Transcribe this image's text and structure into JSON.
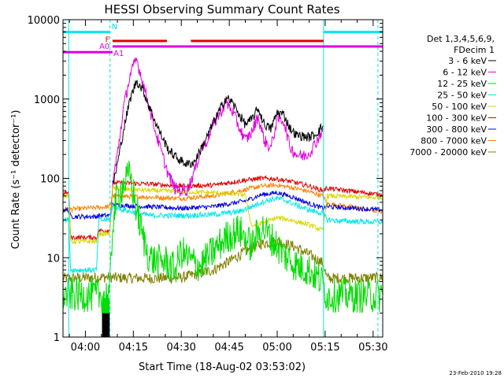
{
  "chart_data": {
    "type": "line",
    "title": "HESSI Observing Summary Count Rates",
    "xlabel": "Start Time (18-Aug-02 03:53:02)",
    "ylabel": "Count Rate (s⁻¹ detector⁻¹)",
    "y_scale": "log",
    "xlim_minutes_after_0400": [
      -7,
      93
    ],
    "ylim": [
      1,
      10000
    ],
    "x_ticks": [
      {
        "t": 0,
        "label": "04:00"
      },
      {
        "t": 15,
        "label": "04:15"
      },
      {
        "t": 30,
        "label": "04:30"
      },
      {
        "t": 45,
        "label": "04:45"
      },
      {
        "t": 60,
        "label": "05:00"
      },
      {
        "t": 75,
        "label": "05:15"
      },
      {
        "t": 90,
        "label": "05:30"
      }
    ],
    "y_ticks": [
      {
        "v": 1,
        "label": "1"
      },
      {
        "v": 10,
        "label": "10"
      },
      {
        "v": 100,
        "label": "100"
      },
      {
        "v": 1000,
        "label": "1000"
      },
      {
        "v": 10000,
        "label": "10000"
      }
    ],
    "legend": {
      "position": "right",
      "header": [
        "Det 1,3,4,5,6,9,",
        "FDecim 1"
      ],
      "entries": [
        {
          "label": "3 - 6 keV",
          "color": "#000000"
        },
        {
          "label": "6 - 12 keV",
          "color": "#e000e0"
        },
        {
          "label": "12 - 25 keV",
          "color": "#00dd00"
        },
        {
          "label": "25 - 50 keV",
          "color": "#00e8e8"
        },
        {
          "label": "50 - 100 keV",
          "color": "#d8d800"
        },
        {
          "label": "100 - 300 keV",
          "color": "#e00000"
        },
        {
          "label": "300 - 800 keV",
          "color": "#0000e0"
        },
        {
          "label": "800 - 7000 keV",
          "color": "#ff8000"
        },
        {
          "label": "7000 - 20000 keV",
          "color": "#808000"
        }
      ]
    },
    "flags": [
      {
        "label": "N",
        "color": "#00e8e8",
        "y": 7000,
        "segments": [
          [
            -7,
            7.7
          ],
          [
            74.5,
            93
          ]
        ]
      },
      {
        "label": "F",
        "color": "#e00000",
        "y": 5400,
        "segments": [
          [
            8.5,
            25.5
          ],
          [
            33,
            74.5
          ]
        ]
      },
      {
        "label": "A0",
        "color": "#e000e0",
        "y": 4600,
        "segments": [
          [
            8.5,
            93
          ]
        ]
      },
      {
        "label": "A1",
        "color": "#e000e0",
        "y": 3900,
        "segments": [
          [
            -7,
            8.5
          ]
        ]
      }
    ],
    "vlines": [
      {
        "t": -5.2,
        "color": "#00e8e8",
        "style": "solid"
      },
      {
        "t": 7.7,
        "color": "#00e8e8",
        "style": "dashed"
      },
      {
        "t": 74.5,
        "color": "#00e8e8",
        "style": "solid"
      },
      {
        "t": 91.5,
        "color": "#00e8e8",
        "style": "dashed"
      }
    ],
    "series": [
      {
        "name": "3 - 6 keV",
        "color": "#000000",
        "noise": 0.06,
        "x": [
          8.5,
          10,
          12,
          14,
          16,
          18,
          20,
          22,
          24,
          26,
          28,
          30,
          32,
          34,
          36,
          38,
          40,
          42,
          44,
          46,
          48,
          50,
          52,
          54,
          56,
          58,
          60,
          62,
          64,
          66,
          68,
          70,
          72,
          74.3
        ],
        "y": [
          80,
          150,
          420,
          1000,
          1700,
          1300,
          800,
          500,
          330,
          230,
          190,
          165,
          150,
          160,
          230,
          330,
          500,
          720,
          1050,
          900,
          650,
          480,
          550,
          760,
          480,
          420,
          680,
          640,
          430,
          350,
          340,
          330,
          360,
          460
        ]
      },
      {
        "name": "6 - 12 keV",
        "color": "#e000e0",
        "noise": 0.08,
        "x": [
          8.5,
          10,
          12,
          14,
          16,
          18,
          20,
          22,
          24,
          26,
          28,
          30,
          32,
          34,
          36,
          38,
          40,
          42,
          44,
          46,
          48,
          50,
          52,
          54,
          56,
          58,
          60,
          62,
          64,
          66,
          68,
          70,
          72,
          74.3
        ],
        "y": [
          90,
          200,
          800,
          2000,
          3200,
          1600,
          800,
          380,
          200,
          110,
          75,
          70,
          72,
          120,
          220,
          300,
          480,
          650,
          920,
          700,
          450,
          300,
          380,
          600,
          300,
          240,
          560,
          540,
          250,
          200,
          190,
          210,
          280,
          420
        ]
      },
      {
        "name": "12 - 25 keV",
        "color": "#00dd00",
        "noise": 0.22,
        "x": [
          -7,
          0,
          5,
          7.6,
          8.6,
          10,
          12,
          14,
          16,
          18,
          20,
          22,
          25,
          28,
          30,
          33,
          36,
          40,
          44,
          48,
          52,
          55,
          57,
          60,
          63,
          66,
          70,
          74,
          75.6,
          80,
          85,
          90,
          93
        ],
        "y": [
          3.4,
          3.4,
          3.3,
          3.5,
          30,
          60,
          85,
          110,
          40,
          18,
          10,
          9,
          9,
          7,
          12,
          9,
          8,
          12,
          18,
          22,
          14,
          25,
          20,
          14,
          10,
          8,
          7,
          5,
          3.3,
          3.4,
          3.3,
          3.3,
          3.4
        ]
      },
      {
        "name": "25 - 50 keV",
        "color": "#00e8e8",
        "noise": 0.035,
        "x": [
          -7,
          -5.2,
          -4.6,
          3.5,
          4.2,
          7.6,
          8.6,
          12,
          20,
          30,
          40,
          48,
          52,
          55,
          58,
          60,
          63,
          66,
          70,
          74.3,
          75.6,
          80,
          93
        ],
        "y": [
          30,
          30,
          7,
          7,
          30,
          30,
          45,
          40,
          34,
          34,
          35,
          38,
          44,
          50,
          54,
          56,
          52,
          46,
          40,
          36,
          30,
          29,
          28
        ]
      },
      {
        "name": "50 - 100 keV",
        "color": "#d8d800",
        "noise": 0.03,
        "x": [
          -7,
          -5.2,
          -4.6,
          3.5,
          4.2,
          7.6,
          8.6,
          15,
          30,
          40,
          50,
          52,
          56,
          60,
          64,
          70,
          74.3,
          75.6,
          93
        ],
        "y": [
          60,
          60,
          16,
          16,
          20,
          20,
          75,
          72,
          68,
          66,
          62,
          25,
          28,
          32,
          30,
          26,
          22,
          60,
          57
        ]
      },
      {
        "name": "100 - 300 keV",
        "color": "#e00000",
        "noise": 0.03,
        "x": [
          -7,
          -5.2,
          -4.6,
          3.5,
          4.2,
          7.6,
          8.6,
          20,
          30,
          40,
          50,
          55,
          60,
          65,
          70,
          74.3,
          75.6,
          93
        ],
        "y": [
          65,
          65,
          18,
          18,
          22,
          22,
          88,
          85,
          80,
          82,
          95,
          100,
          98,
          90,
          80,
          70,
          75,
          62
        ]
      },
      {
        "name": "300 - 800 keV",
        "color": "#0000e0",
        "noise": 0.03,
        "x": [
          -7,
          -5.2,
          -4.6,
          3.5,
          4.2,
          7.6,
          8.6,
          20,
          30,
          40,
          50,
          55,
          60,
          65,
          70,
          74.3,
          75.6,
          93
        ],
        "y": [
          40,
          40,
          33,
          33,
          34,
          34,
          46,
          44,
          42,
          44,
          52,
          62,
          66,
          58,
          48,
          42,
          44,
          40
        ]
      },
      {
        "name": "800 - 7000 keV",
        "color": "#ff8000",
        "noise": 0.03,
        "x": [
          -7,
          0,
          7.6,
          8.6,
          20,
          30,
          40,
          50,
          55,
          60,
          65,
          70,
          74.3,
          75.6,
          93
        ],
        "y": [
          40,
          42,
          44,
          60,
          58,
          56,
          60,
          72,
          80,
          82,
          76,
          68,
          60,
          48,
          38
        ]
      },
      {
        "name": "7000 - 20000 keV",
        "color": "#808000",
        "noise": 0.07,
        "x": [
          -7,
          0,
          7.6,
          8.6,
          20,
          30,
          40,
          45,
          50,
          55,
          60,
          65,
          70,
          74.3,
          75.6,
          93
        ],
        "y": [
          5.5,
          5.6,
          5.7,
          5.6,
          5.5,
          5.6,
          7,
          9,
          12,
          15,
          16,
          14,
          11,
          8.5,
          5.5,
          5.6
        ]
      }
    ],
    "data_gap_black_bar": {
      "t0": 5.2,
      "t1": 7.6,
      "y": [
        1,
        2
      ]
    },
    "data_gap_green_bar": {
      "t0": 5.2,
      "t1": 7.6,
      "y": [
        1.95,
        3.1
      ]
    }
  },
  "footer": {
    "timestamp": "23-Feb-2010 19:28"
  }
}
